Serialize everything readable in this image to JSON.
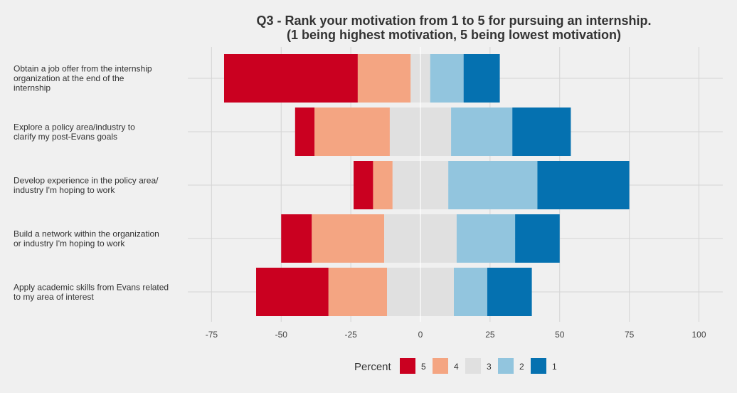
{
  "chart_data": {
    "type": "bar",
    "orientation": "horizontal",
    "stacking": "diverging",
    "title": "Q3 - Rank your motivation from 1 to 5 for pursuing an internship.",
    "subtitle": "(1 being highest motivation, 5 being lowest motivation)",
    "xlabel": "",
    "ylabel": "",
    "xlim": [
      -75,
      100
    ],
    "x_ticks": [
      -75,
      -50,
      -25,
      0,
      25,
      50,
      75,
      100
    ],
    "x_tick_labels": [
      "-75",
      "-50",
      "-25",
      "0",
      "25",
      "50",
      "75",
      "100"
    ],
    "grid": true,
    "legend_position": "bottom",
    "legend_title": "Percent",
    "categories": [
      [
        "Obtain a job offer from the internship",
        "organization at the end of the",
        "internship"
      ],
      [
        "Explore a policy area/industry to",
        "clarify my post-Evans goals"
      ],
      [
        "Develop experience in the policy area/",
        "industry I'm hoping to work"
      ],
      [
        "Build a network within the organization",
        "or industry I'm hoping to work"
      ],
      [
        "Apply academic skills from Evans related",
        "to my area of interest"
      ]
    ],
    "series": [
      {
        "name": "5",
        "color": "#ca0020",
        "values": [
          48,
          7,
          7,
          11,
          26
        ]
      },
      {
        "name": "4",
        "color": "#f4a582",
        "values": [
          19,
          27,
          7,
          26,
          21
        ]
      },
      {
        "name": "3",
        "color": "#e0e0e0",
        "values": [
          7,
          22,
          20,
          26,
          24
        ]
      },
      {
        "name": "2",
        "color": "#92c5de",
        "values": [
          12,
          22,
          32,
          21,
          12
        ]
      },
      {
        "name": "1",
        "color": "#0571b0",
        "values": [
          13,
          21,
          33,
          16,
          16
        ]
      }
    ]
  }
}
